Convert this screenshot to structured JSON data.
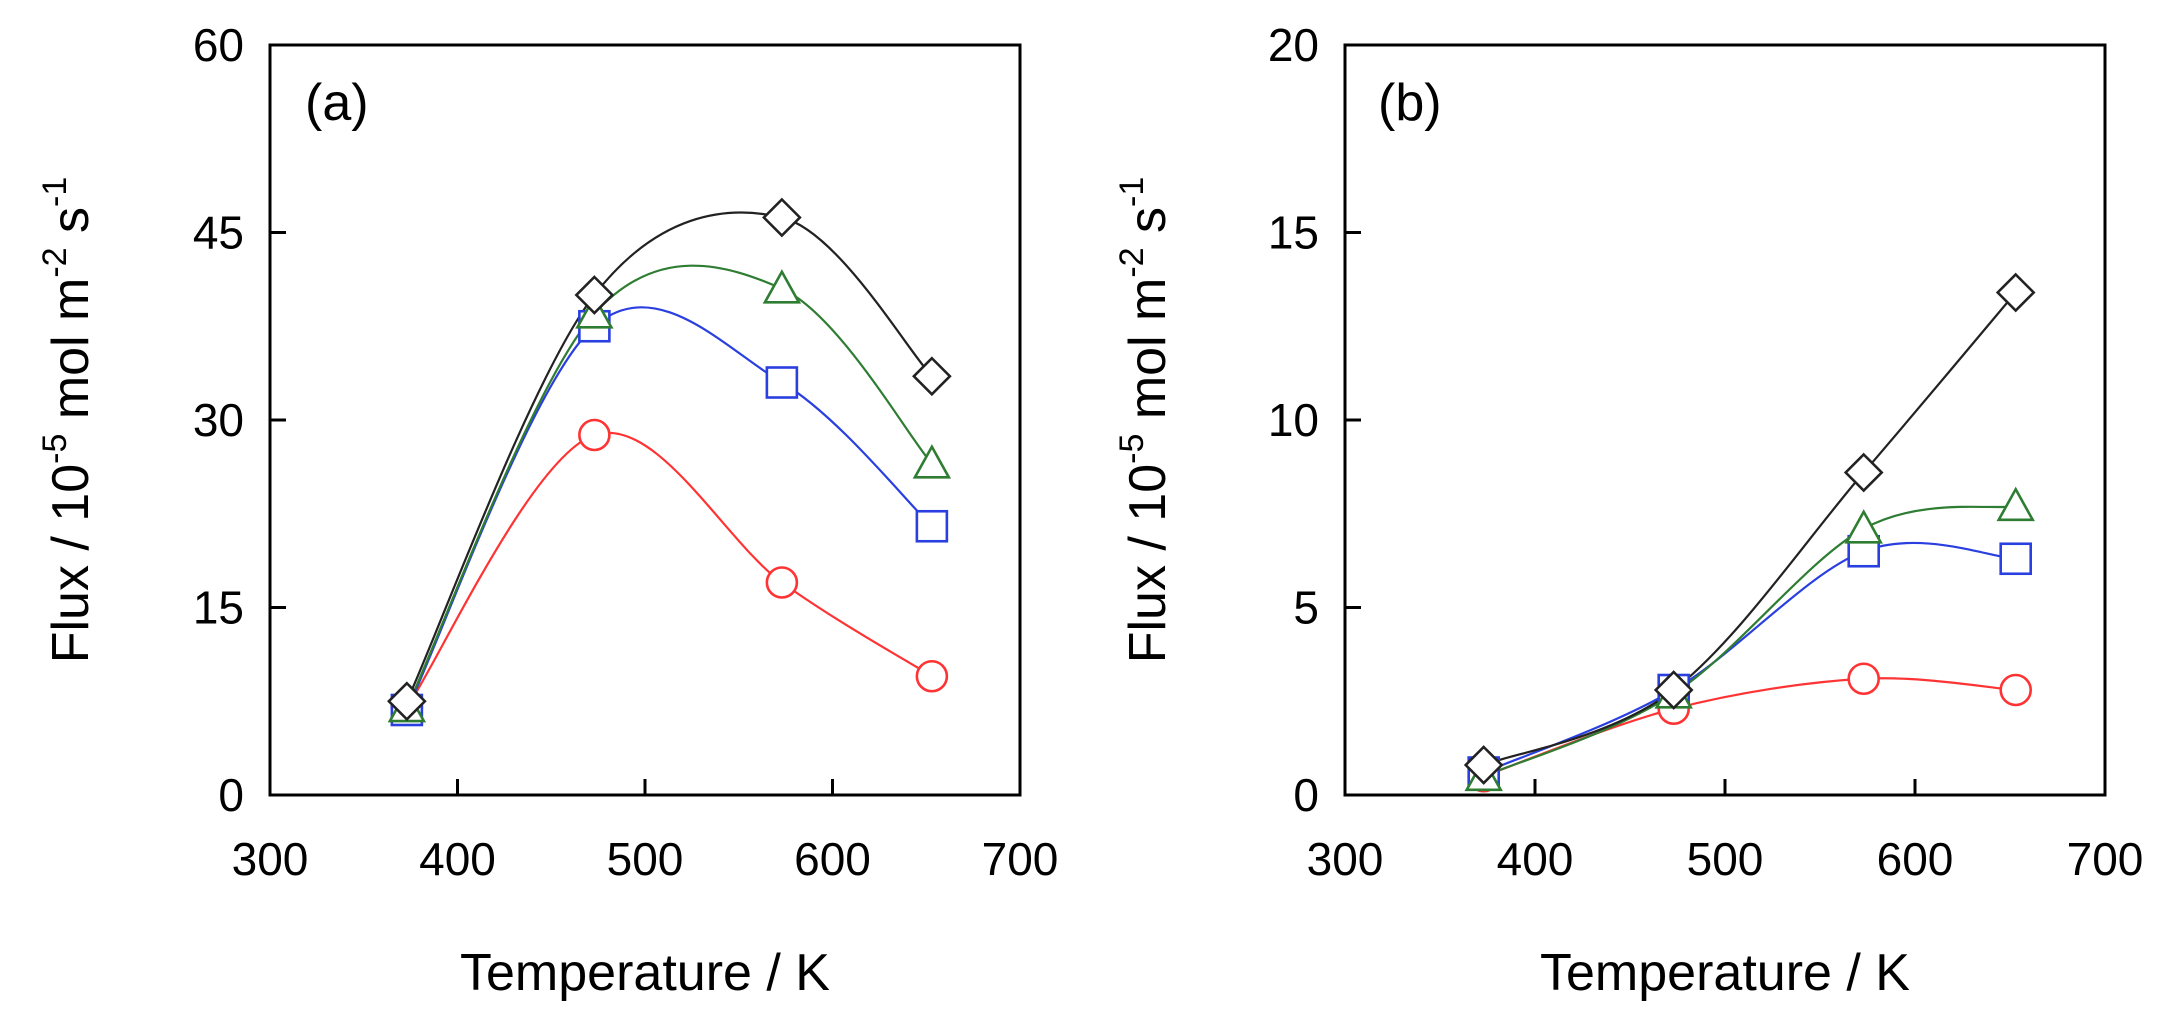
{
  "chart_data": [
    {
      "type": "line",
      "panel_label": "(a)",
      "xlabel": "Temperature / K",
      "ylabel": {
        "base": "Flux / 10",
        "exp1": "-5",
        "mid": " mol m",
        "exp2": "-2",
        "mid2": " s",
        "exp3": "-1"
      },
      "xlim": [
        300,
        700
      ],
      "ylim": [
        0,
        60
      ],
      "xticks": [
        300,
        400,
        500,
        600,
        700
      ],
      "yticks": [
        0,
        15,
        30,
        45,
        60
      ],
      "x": [
        373,
        473,
        573,
        653
      ],
      "series": [
        {
          "name": "circle",
          "marker": "circle",
          "color": "#ff3333",
          "values": [
            7,
            28.8,
            17,
            9.5
          ]
        },
        {
          "name": "square",
          "marker": "square",
          "color": "#2a3fe0",
          "values": [
            6.8,
            37.5,
            33,
            21.5
          ]
        },
        {
          "name": "triangle",
          "marker": "triangle",
          "color": "#2e7d32",
          "values": [
            7,
            38.5,
            40.5,
            26.5
          ]
        },
        {
          "name": "diamond",
          "marker": "diamond",
          "color": "#222222",
          "values": [
            7.5,
            40,
            46.2,
            33.5
          ]
        }
      ]
    },
    {
      "type": "line",
      "panel_label": "(b)",
      "xlabel": "Temperature / K",
      "ylabel": {
        "base": "Flux / 10",
        "exp1": "-5",
        "mid": " mol m",
        "exp2": "-2",
        "mid2": " s",
        "exp3": "-1"
      },
      "xlim": [
        300,
        700
      ],
      "ylim": [
        0,
        20
      ],
      "xticks": [
        300,
        400,
        500,
        600,
        700
      ],
      "yticks": [
        0,
        5,
        10,
        15,
        20
      ],
      "x": [
        373,
        473,
        573,
        653
      ],
      "series": [
        {
          "name": "circle",
          "marker": "circle",
          "color": "#ff3333",
          "values": [
            0.5,
            2.3,
            3.1,
            2.8
          ]
        },
        {
          "name": "square",
          "marker": "square",
          "color": "#2a3fe0",
          "values": [
            0.6,
            2.8,
            6.5,
            6.3
          ]
        },
        {
          "name": "triangle",
          "marker": "triangle",
          "color": "#2e7d32",
          "values": [
            0.5,
            2.7,
            7.1,
            7.7
          ]
        },
        {
          "name": "diamond",
          "marker": "diamond",
          "color": "#222222",
          "values": [
            0.8,
            2.8,
            8.6,
            13.4
          ]
        }
      ]
    }
  ]
}
